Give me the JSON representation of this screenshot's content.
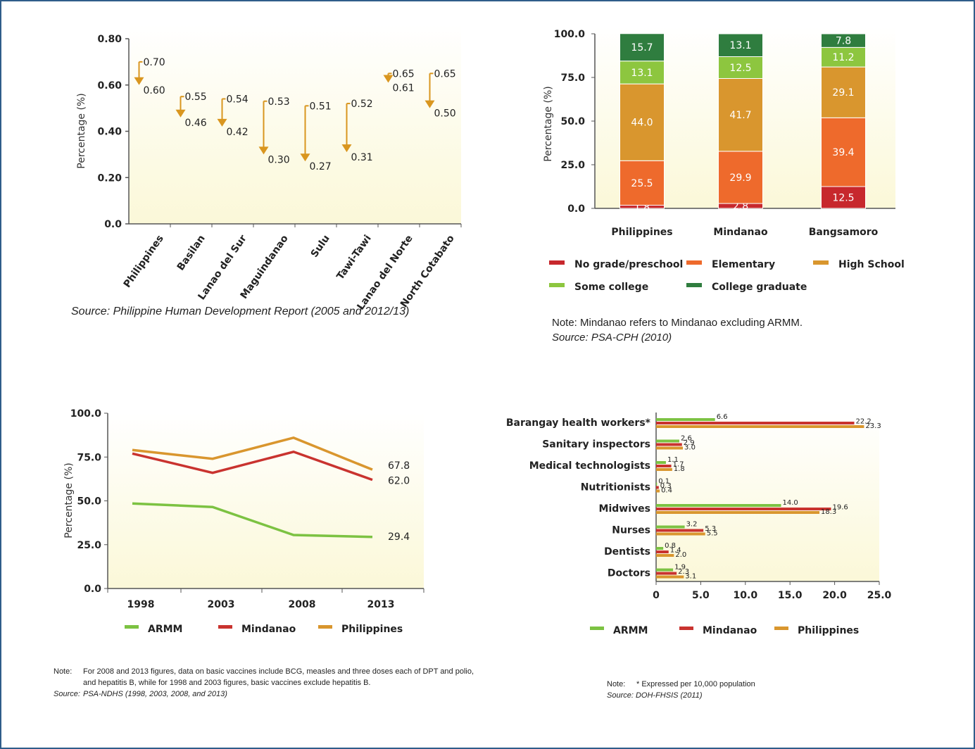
{
  "colors": {
    "frame": "#2f5d8a",
    "arrow": "#d9961f",
    "no_grade": "#c7282d",
    "elementary": "#ee6a2c",
    "high_school": "#d9962e",
    "some_college": "#8dc63f",
    "college_grad": "#2f7d3f",
    "armm": "#7cc242",
    "mindanao": "#c9332f",
    "philippines": "#d9962e"
  },
  "chart_data": [
    {
      "type": "scatter",
      "ylabel": "Percentage (%)",
      "ylim": [
        0,
        0.8
      ],
      "yticks": [
        "0.0",
        "0.20",
        "0.40",
        "0.60",
        "0.80"
      ],
      "categories": [
        "Philippines",
        "Basilan",
        "Lanao del Sur",
        "Maguindanao",
        "Sulu",
        "Tawi-Tawi",
        "Lanao del Norte",
        "North Cotabato"
      ],
      "start_values": [
        0.7,
        0.55,
        0.54,
        0.53,
        0.51,
        0.52,
        0.65,
        0.65
      ],
      "end_values": [
        0.6,
        0.46,
        0.42,
        0.3,
        0.27,
        0.31,
        0.61,
        0.5
      ],
      "start_labels": [
        "0.70",
        "0.55",
        "0.54",
        "0.53",
        "0.51",
        "0.52",
        "0.65",
        "0.65"
      ],
      "end_labels": [
        "0.60",
        "0.46",
        "0.42",
        "0.30",
        "0.27",
        "0.31",
        "0.61",
        "0.50"
      ],
      "source": "Source: Philippine Human Development Report (2005 and 2012/13)"
    },
    {
      "type": "bar",
      "stacked": true,
      "ylabel": "Percentage (%)",
      "ylim": [
        0,
        100
      ],
      "yticks": [
        "0.0",
        "25.0",
        "50.0",
        "75.0",
        "100.0"
      ],
      "categories": [
        "Philippines",
        "Mindanao",
        "Bangsamoro"
      ],
      "series": [
        {
          "name": "No grade/preschool",
          "values": [
            1.8,
            2.8,
            12.5
          ],
          "labels": [
            "1.8",
            "2.8",
            "12.5"
          ]
        },
        {
          "name": "Elementary",
          "values": [
            25.5,
            29.9,
            39.4
          ],
          "labels": [
            "25.5",
            "29.9",
            "39.4"
          ]
        },
        {
          "name": "High School",
          "values": [
            44.0,
            41.7,
            29.1
          ],
          "labels": [
            "44.0",
            "41.7",
            "29.1"
          ]
        },
        {
          "name": "Some college",
          "values": [
            13.1,
            12.5,
            11.2
          ],
          "labels": [
            "13.1",
            "12.5",
            "11.2"
          ]
        },
        {
          "name": "College graduate",
          "values": [
            15.7,
            13.1,
            7.8
          ],
          "labels": [
            "15.7",
            "13.1",
            "7.8"
          ]
        }
      ],
      "note": "Note:  Mindanao refers to Mindanao excluding ARMM.",
      "source": "Source:  PSA-CPH (2010)"
    },
    {
      "type": "line",
      "ylabel": "Percentage (%)",
      "ylim": [
        0,
        100
      ],
      "yticks": [
        "0.0",
        "25.0",
        "50.0",
        "75.0",
        "100.0"
      ],
      "x": [
        "1998",
        "2003",
        "2008",
        "2013"
      ],
      "series": [
        {
          "name": "ARMM",
          "values": [
            48.5,
            46.5,
            30.5,
            29.4
          ],
          "end_label": "29.4"
        },
        {
          "name": "Mindanao",
          "values": [
            77,
            66,
            78,
            62.0
          ],
          "end_label": "62.0"
        },
        {
          "name": "Philippines",
          "values": [
            79,
            74,
            86,
            67.8
          ],
          "end_label": "67.8"
        }
      ],
      "note_label": "Note:",
      "note_lines": [
        "For 2008 and 2013 figures, data on basic vaccines include BCG, measles and three doses each of DPT and polio,",
        "and hepatitis B, while for 1998 and 2003 figures, basic vaccines exclude hepatitis B."
      ],
      "source_label": "Source:",
      "source": "PSA-NDHS (1998, 2003, 2008, and 2013)"
    },
    {
      "type": "bar",
      "orientation": "horizontal",
      "xlim": [
        0,
        25
      ],
      "xticks": [
        "0",
        "5.0",
        "10.0",
        "15.0",
        "20.0",
        "25.0"
      ],
      "categories": [
        "Barangay health workers*",
        "Sanitary inspectors",
        "Medical technologists",
        "Nutritionists",
        "Midwives",
        "Nurses",
        "Dentists",
        "Doctors"
      ],
      "series": [
        {
          "name": "ARMM",
          "values": [
            6.6,
            2.6,
            1.1,
            0.1,
            14.0,
            3.2,
            0.8,
            1.9
          ],
          "labels": [
            "6.6",
            "2.6",
            "1.1",
            "0.1",
            "14.0",
            "3.2",
            "0.8",
            "1.9"
          ]
        },
        {
          "name": "Mindanao",
          "values": [
            22.2,
            2.9,
            1.7,
            0.3,
            19.6,
            5.3,
            1.4,
            2.3
          ],
          "labels": [
            "22.2",
            "2.9",
            "1.7",
            "0.3",
            "19.6",
            "5.3",
            "1.4",
            "2.3"
          ]
        },
        {
          "name": "Philippines",
          "values": [
            23.3,
            3.0,
            1.8,
            0.4,
            18.3,
            5.5,
            2.0,
            3.1
          ],
          "labels": [
            "23.3",
            "3.0",
            "1.8",
            "0.4",
            "18.3",
            "5.5",
            "2.0",
            "3.1"
          ]
        }
      ],
      "note_label": "Note:",
      "note": "* Expressed per 10,000 population",
      "source": "Source:  DOH-FHSIS (2011)"
    }
  ]
}
